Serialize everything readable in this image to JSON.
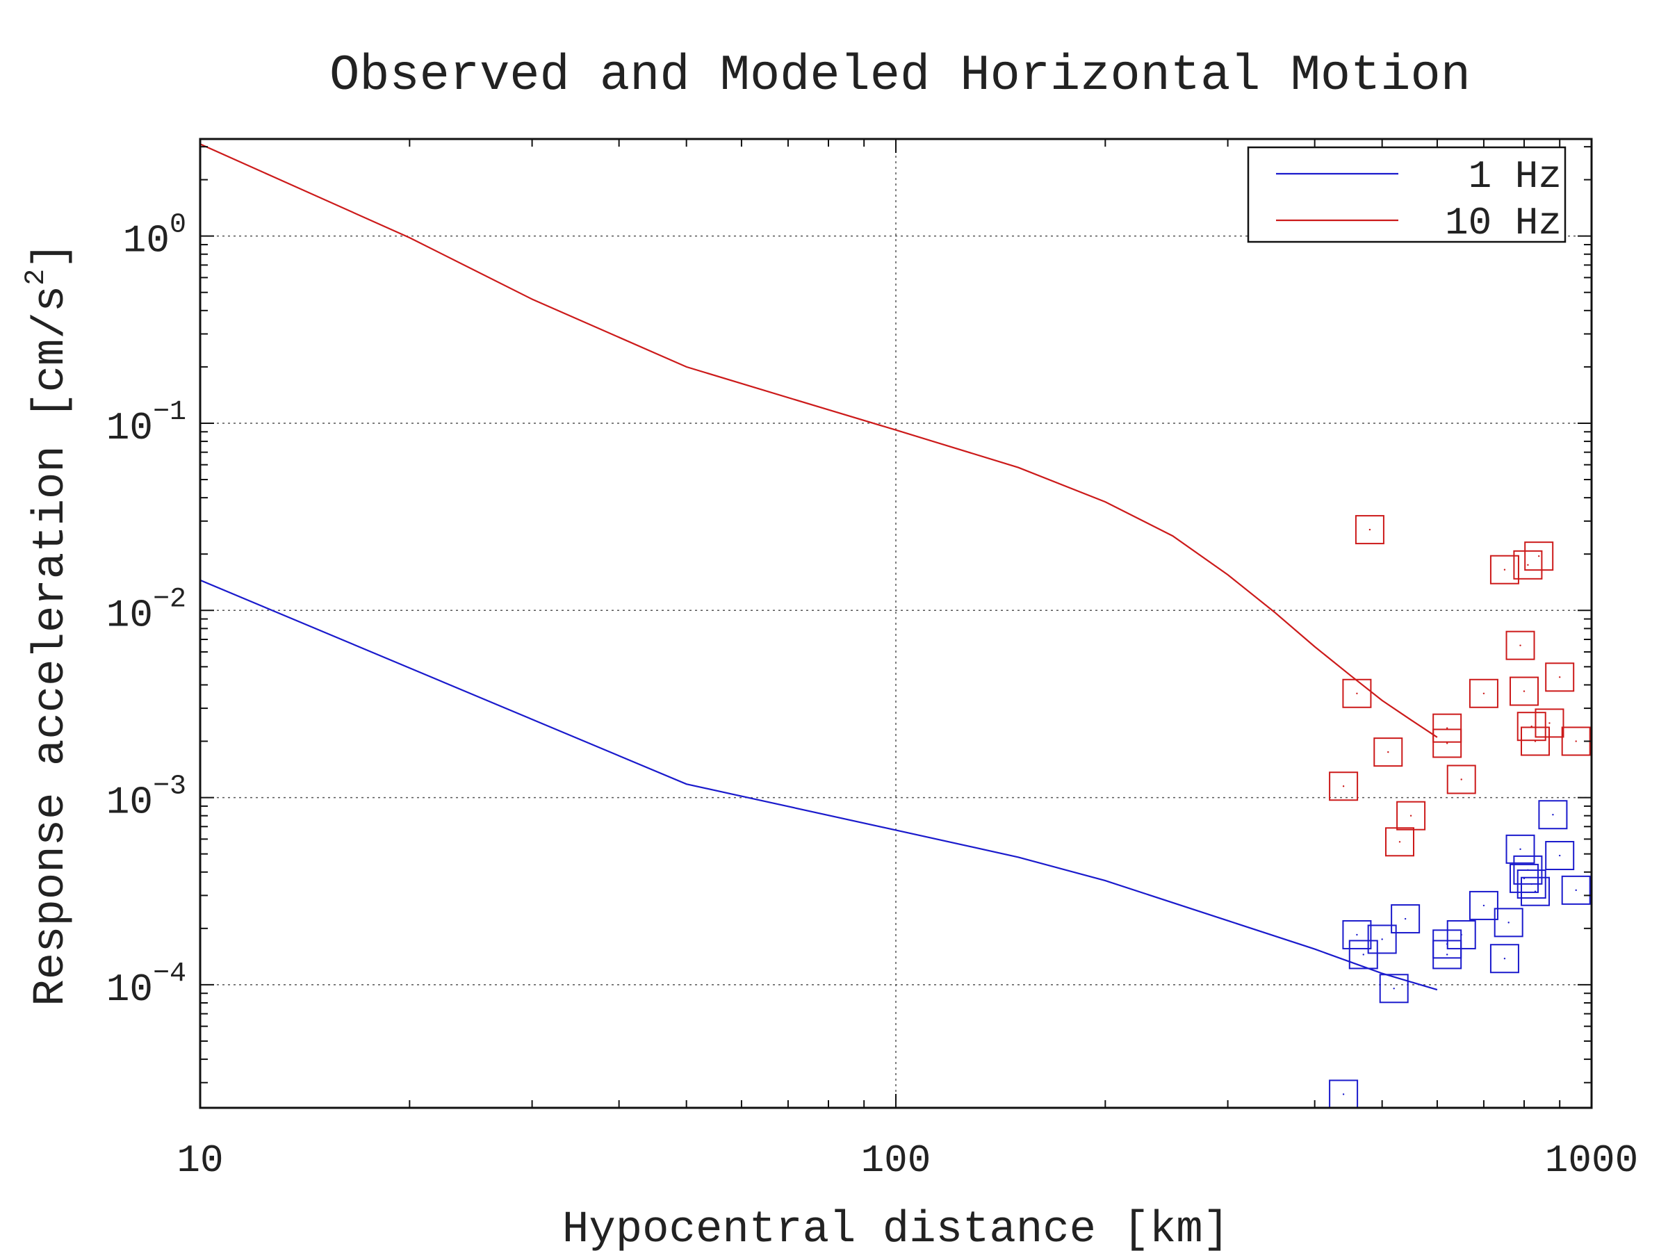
{
  "chart_data": {
    "type": "scatter",
    "title": "Observed and Modeled Horizontal Motion",
    "xlabel": "Hypocentral distance [km]",
    "ylabel": "Response acceleration [cm/s",
    "ylabel_exponent": "2",
    "ylabel_suffix": "]",
    "x_scale": "log",
    "y_scale": "log",
    "xlim": [
      10,
      1000
    ],
    "ylim": [
      2.2e-05,
      3.3
    ],
    "grid": true,
    "legend_position": "top-right",
    "x_ticks": [
      {
        "value": 10,
        "label": "10"
      },
      {
        "value": 100,
        "label": "100"
      },
      {
        "value": 1000,
        "label": "1000"
      }
    ],
    "y_ticks": [
      {
        "value": 1,
        "base": "10",
        "exponent": "0"
      },
      {
        "value": 0.1,
        "base": "10",
        "exponent": "−1"
      },
      {
        "value": 0.01,
        "base": "10",
        "exponent": "−2"
      },
      {
        "value": 0.001,
        "base": "10",
        "exponent": "−3"
      },
      {
        "value": 0.0001,
        "base": "10",
        "exponent": "−4"
      }
    ],
    "series": [
      {
        "name": "1 Hz",
        "color": "#1a1acc",
        "line": {
          "x": [
            10,
            50,
            100,
            150,
            200,
            300,
            400,
            500,
            600
          ],
          "y": [
            0.0145,
            0.00118,
            0.00067,
            0.00048,
            0.00036,
            0.00022,
            0.000155,
            0.000115,
            9.4e-05
          ]
        },
        "points": {
          "x": [
            440,
            460,
            470,
            500,
            520,
            540,
            620,
            620,
            650,
            700,
            750,
            760,
            790,
            800,
            810,
            820,
            830,
            880,
            900,
            950
          ],
          "y": [
            2.6e-05,
            0.000185,
            0.000145,
            0.000175,
            9.55e-05,
            0.000225,
            0.000165,
            0.000145,
            0.000185,
            0.000265,
            0.000138,
            0.000215,
            0.00053,
            0.00037,
            0.00041,
            0.000345,
            0.000315,
            0.00081,
            0.00049,
            0.00032
          ]
        }
      },
      {
        "name": "10 Hz",
        "color": "#cc1a1a",
        "line": {
          "x": [
            10,
            20,
            30,
            50,
            80,
            100,
            150,
            200,
            250,
            300,
            350,
            400,
            450,
            500,
            550,
            600
          ],
          "y": [
            3.1,
            0.98,
            0.46,
            0.2,
            0.118,
            0.092,
            0.058,
            0.038,
            0.025,
            0.0155,
            0.0098,
            0.0064,
            0.0045,
            0.0033,
            0.0026,
            0.0021
          ]
        },
        "points": {
          "x": [
            440,
            460,
            480,
            510,
            530,
            550,
            620,
            620,
            650,
            700,
            750,
            790,
            800,
            810,
            820,
            830,
            840,
            870,
            900,
            950
          ],
          "y": [
            0.00115,
            0.0036,
            0.027,
            0.00175,
            0.00058,
            0.0008,
            0.00235,
            0.00195,
            0.00125,
            0.0036,
            0.0165,
            0.0065,
            0.0037,
            0.0175,
            0.0024,
            0.002,
            0.0195,
            0.0025,
            0.0044,
            0.002
          ]
        }
      }
    ]
  }
}
